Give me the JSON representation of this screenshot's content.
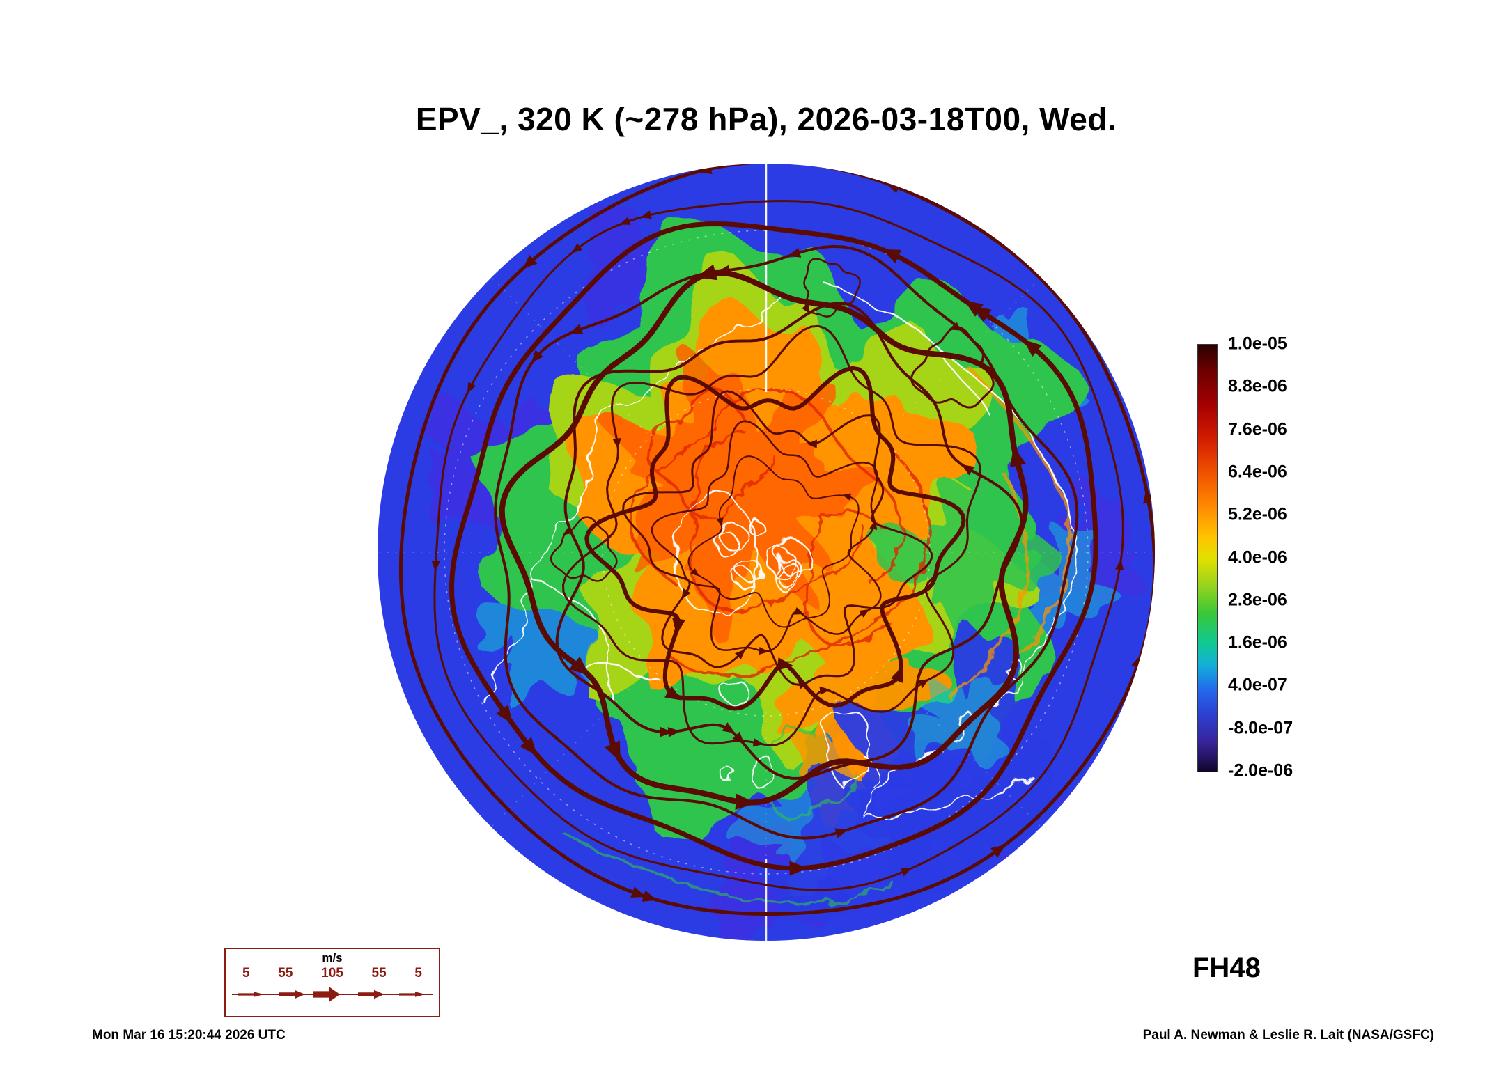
{
  "title": "EPV_, 320 K (~278 hPa), 2026-03-18T00, Wed.",
  "forecast_label": "FH48",
  "colorbar": {
    "tick_labels": [
      "1.0e-05",
      "8.8e-06",
      "7.6e-06",
      "6.4e-06",
      "5.2e-06",
      "4.0e-06",
      "2.8e-06",
      "1.6e-06",
      "4.0e-07",
      "-8.0e-07",
      "-2.0e-06"
    ]
  },
  "wind_legend": {
    "units_label": "m/s",
    "tick_labels": [
      "5",
      "55",
      "105",
      "55",
      "5"
    ]
  },
  "footer": {
    "timestamp": "Mon Mar 16 15:20:44 2026 UTC",
    "credit": "Paul A. Newman & Leslie R. Lait (NASA/GSFC)"
  },
  "chart_data": {
    "type": "heatmap",
    "title": "EPV_, 320 K (~278 hPa), 2026-03-18T00, Wed.",
    "field": "EPV_",
    "level": "320 K (~278 hPa)",
    "valid_time": "2026-03-18T00, Wed.",
    "forecast_hour": "FH48",
    "colorbar_tick_labels": [
      "1.0e-05",
      "8.8e-06",
      "7.6e-06",
      "6.4e-06",
      "5.2e-06",
      "4.0e-06",
      "2.8e-06",
      "1.6e-06",
      "4.0e-07",
      "-8.0e-07",
      "-2.0e-06"
    ],
    "colorbar_gradient": [
      [
        "#2a0000",
        0
      ],
      [
        "#6b0000",
        6
      ],
      [
        "#a40000",
        14
      ],
      [
        "#d31c00",
        22
      ],
      [
        "#f05200",
        30
      ],
      [
        "#ff8a00",
        38
      ],
      [
        "#ffc300",
        45
      ],
      [
        "#e4e000",
        50
      ],
      [
        "#9cd41c",
        56
      ],
      [
        "#38c838",
        63
      ],
      [
        "#10c894",
        70
      ],
      [
        "#12b0d8",
        75
      ],
      [
        "#2368ec",
        81
      ],
      [
        "#2c3ed0",
        87
      ],
      [
        "#38249c",
        93
      ],
      [
        "#1e0e4e",
        98
      ],
      [
        "#100624",
        100
      ]
    ],
    "field_colors": {
      "outer_blue": "#2b3ce4",
      "indigo_patch": "#4a28e0",
      "cyan": "#16c4d2",
      "green": "#2ec44e",
      "yellow_green": "#a6d414",
      "orange": "#ff9400",
      "deep_orange": "#ff6000",
      "red_filament": "#e02800",
      "streamline": "#5a0c04",
      "coastline": "#ffffff"
    },
    "legend_color": "#8b1c12",
    "wind_legend": {
      "units": "m/s",
      "speed_ticks": [
        5,
        55,
        105,
        55,
        5
      ]
    },
    "overlays": [
      "wind streamlines",
      "coastlines",
      "graticule"
    ]
  }
}
